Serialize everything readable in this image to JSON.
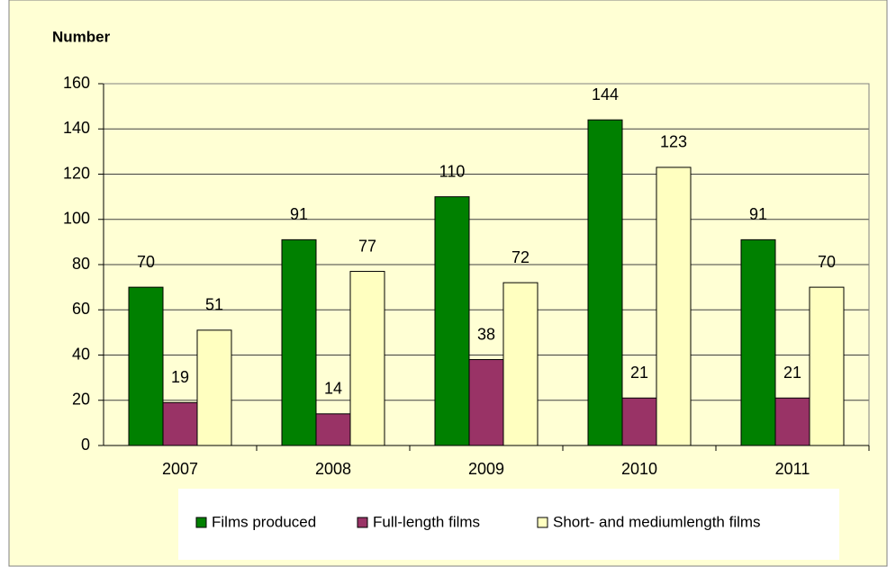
{
  "chart_data": {
    "type": "bar",
    "y_label": "Number",
    "categories": [
      "2007",
      "2008",
      "2009",
      "2010",
      "2011"
    ],
    "series": [
      {
        "name": "Films produced",
        "color": "#008000",
        "values": [
          70,
          91,
          110,
          144,
          91
        ]
      },
      {
        "name": "Full-length films",
        "color": "#993366",
        "values": [
          19,
          14,
          38,
          21,
          21
        ]
      },
      {
        "name": "Short- and mediumlength films",
        "color": "#ffffc0",
        "values": [
          51,
          77,
          72,
          123,
          70
        ]
      }
    ],
    "ylim": [
      0,
      160
    ],
    "yticks": [
      0,
      20,
      40,
      60,
      80,
      100,
      120,
      140,
      160
    ],
    "grid": true,
    "legend": "bottom"
  }
}
